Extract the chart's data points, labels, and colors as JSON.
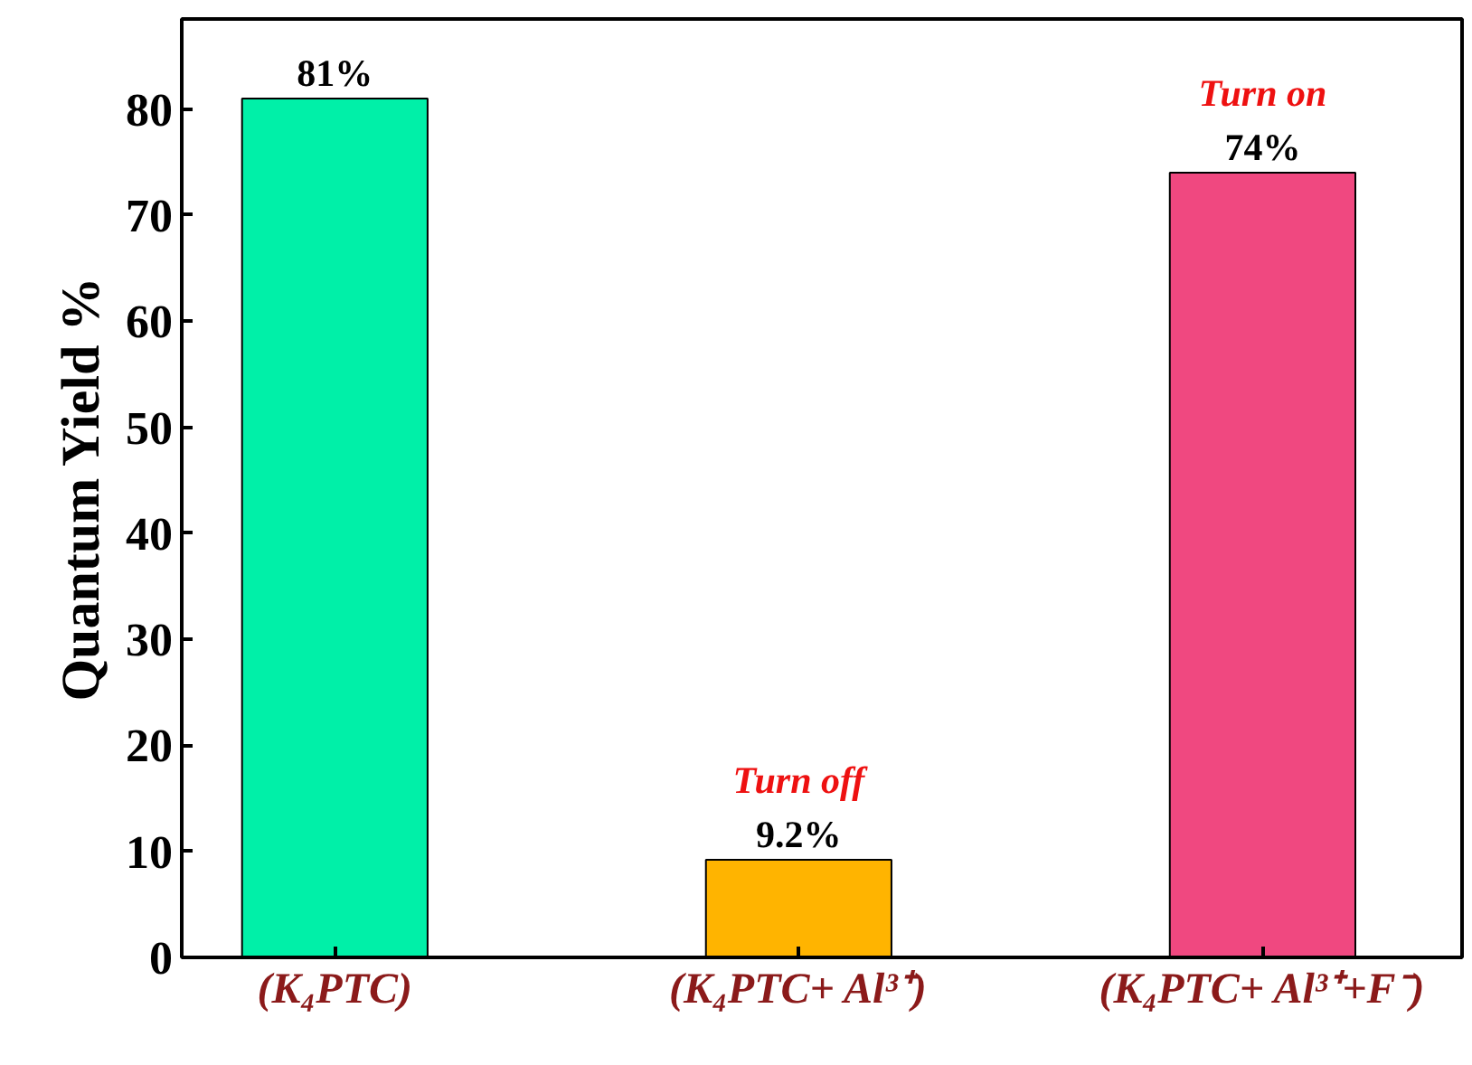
{
  "chart_data": {
    "type": "bar",
    "ylabel": "Quantum Yield %",
    "categories": [
      "(K₄PTC)",
      "(K₄PTC+ Al³⁺)",
      "(K₄PTC+ Al³⁺+F⁻)"
    ],
    "values": [
      81,
      9.2,
      74
    ],
    "colors": [
      "#00f0a8",
      "#ffb400",
      "#f04880"
    ],
    "value_labels": [
      "81%",
      "9.2%",
      "74%"
    ],
    "annotations": [
      "Turn off",
      "Turn on"
    ],
    "ylim": [
      0,
      88.5
    ],
    "yticks": [
      0,
      10,
      20,
      30,
      40,
      50,
      60,
      70,
      80
    ],
    "grid": false
  }
}
